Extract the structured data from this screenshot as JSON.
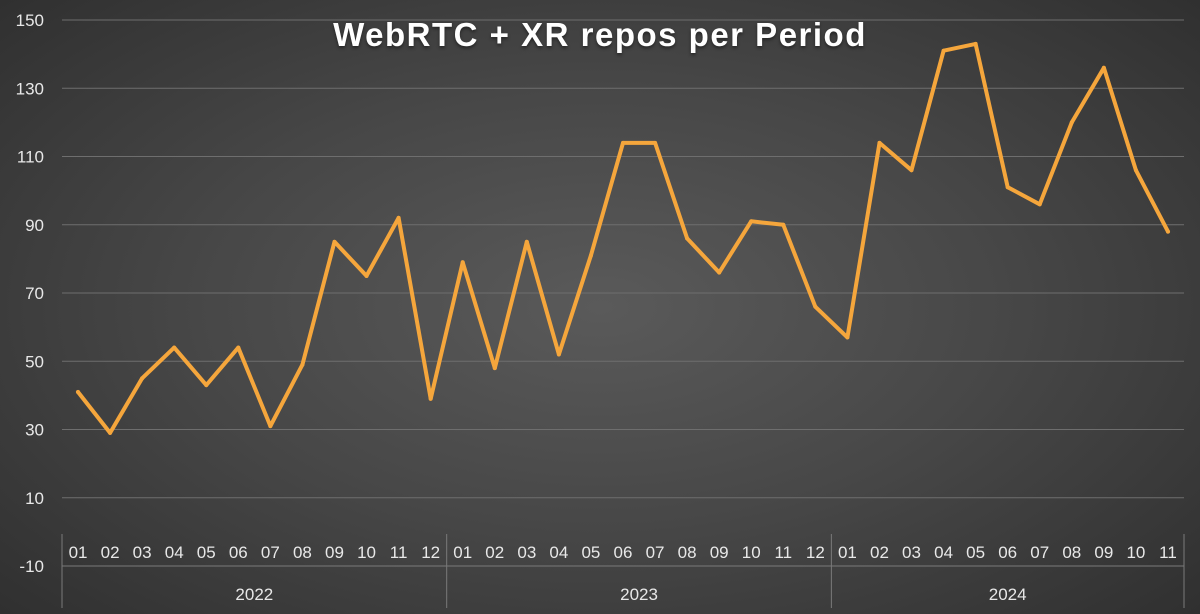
{
  "chart_data": {
    "type": "line",
    "title": "WebRTC + XR repos per Period",
    "xlabel": "",
    "ylabel": "",
    "ylim": [
      -10,
      150
    ],
    "yticks": [
      -10,
      10,
      30,
      50,
      70,
      90,
      110,
      130,
      150
    ],
    "grid": true,
    "legend": "none",
    "groups": [
      {
        "label": "2022",
        "months": [
          "01",
          "02",
          "03",
          "04",
          "05",
          "06",
          "07",
          "08",
          "09",
          "10",
          "11",
          "12"
        ]
      },
      {
        "label": "2023",
        "months": [
          "01",
          "02",
          "03",
          "04",
          "05",
          "06",
          "07",
          "08",
          "09",
          "10",
          "11",
          "12"
        ]
      },
      {
        "label": "2024",
        "months": [
          "01",
          "02",
          "03",
          "04",
          "05",
          "06",
          "07",
          "08",
          "09",
          "10",
          "11"
        ]
      }
    ],
    "series": [
      {
        "color": "#f5a63c",
        "values": [
          41,
          29,
          45,
          54,
          43,
          54,
          31,
          49,
          85,
          75,
          92,
          39,
          79,
          48,
          85,
          52,
          81,
          114,
          114,
          86,
          76,
          91,
          90,
          66,
          57,
          114,
          106,
          141,
          143,
          101,
          96,
          120,
          136,
          106,
          88
        ]
      }
    ]
  }
}
